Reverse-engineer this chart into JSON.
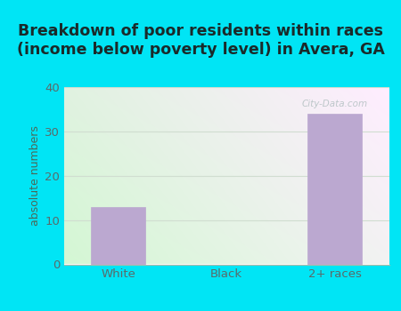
{
  "categories": [
    "White",
    "Black",
    "2+ races"
  ],
  "values": [
    13,
    0,
    34
  ],
  "bar_color": "#bba8d0",
  "bar_edgecolor": "#bba8d0",
  "title_line1": "Breakdown of poor residents within races",
  "title_line2": "(income below poverty level) in Avera, GA",
  "ylabel": "absolute numbers",
  "ylim": [
    0,
    40
  ],
  "yticks": [
    0,
    10,
    20,
    30,
    40
  ],
  "bg_outer": "#00e5f5",
  "title_fontsize": 12.5,
  "axis_fontsize": 9,
  "tick_fontsize": 9.5,
  "watermark": "City-Data.com",
  "title_color": "#1a2a2a",
  "tick_color": "#5a6a6a",
  "grid_color": "#d0ddd0",
  "ylabel_color": "#4a6a5a"
}
